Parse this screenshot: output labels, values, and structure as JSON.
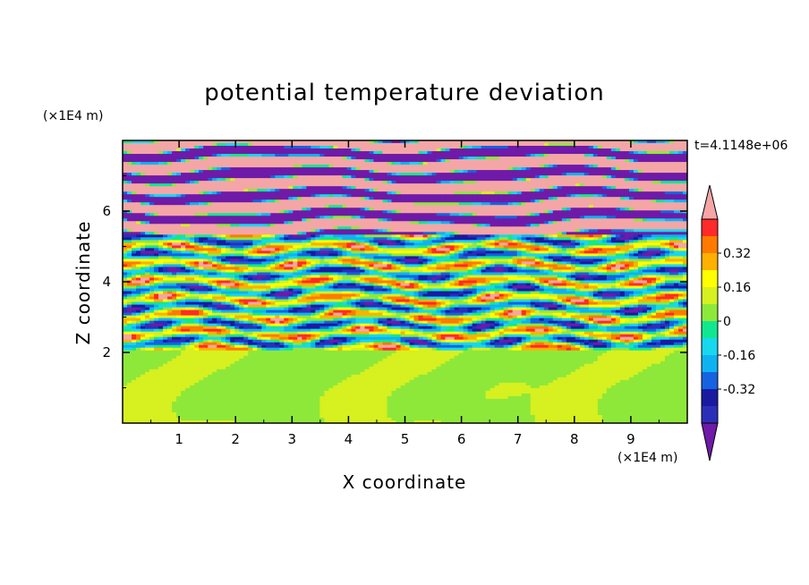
{
  "chart_data": {
    "type": "heatmap",
    "title": "potential temperature deviation",
    "xlabel": "X coordinate",
    "ylabel": "Z coordinate",
    "x_unit": "(×1E4 m)",
    "y_unit": "(×1E4 m)",
    "time_label": "t=4.1148e+06",
    "xlim": [
      0,
      10
    ],
    "ylim": [
      0,
      8
    ],
    "x_ticks": [
      "1",
      "2",
      "3",
      "4",
      "5",
      "6",
      "7",
      "8",
      "9"
    ],
    "y_ticks": [
      "2",
      "4",
      "6"
    ],
    "colorbar": {
      "levels": [
        -0.48,
        -0.4,
        -0.32,
        -0.24,
        -0.16,
        -0.08,
        0,
        0.08,
        0.16,
        0.24,
        0.32,
        0.4,
        0.48
      ],
      "colors": [
        "#6f1aa8",
        "#2b2fb8",
        "#1a1aa0",
        "#1563e0",
        "#0fb2f0",
        "#18d8f0",
        "#10e890",
        "#8ee83a",
        "#d6f020",
        "#ffff00",
        "#ffb000",
        "#ff7a00",
        "#ff2a2a",
        "#f4a6a6"
      ],
      "tick_labels": [
        "0.32",
        "0.16",
        "0",
        "-0.16",
        "-0.32"
      ],
      "extend": "both"
    },
    "grid": false
  }
}
